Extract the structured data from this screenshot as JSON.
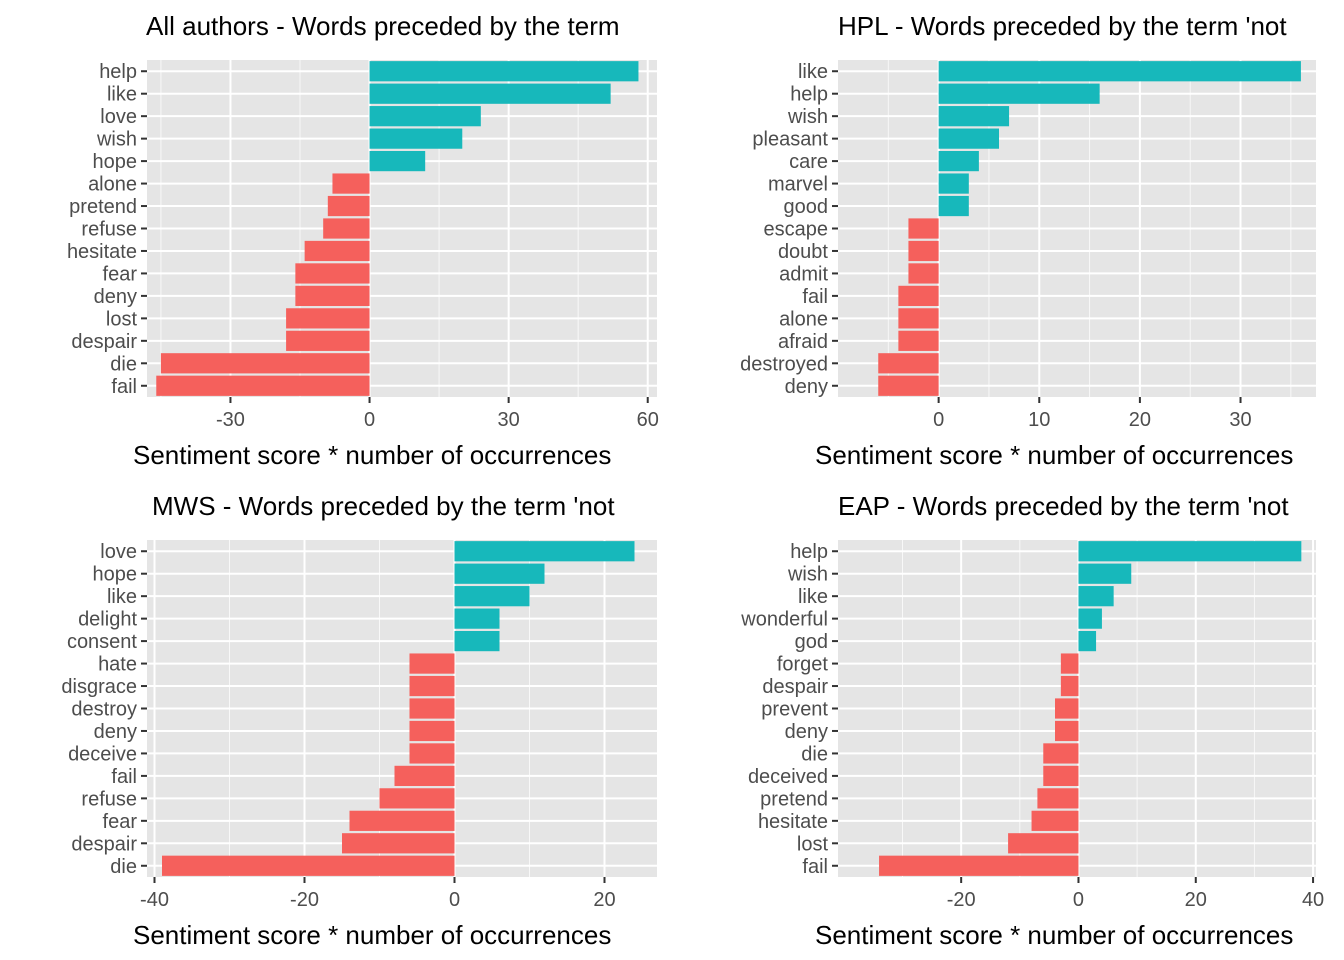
{
  "colors": {
    "positive": "#17b8bb",
    "negative": "#f5605c",
    "panel": "#e5e5e5",
    "grid": "#ffffff"
  },
  "chart_data": [
    {
      "type": "bar",
      "orientation": "horizontal",
      "title": "All authors - Words preceded by the term",
      "xlabel": "Sentiment score * number of occurrences",
      "xlim": [
        -48,
        62
      ],
      "xticks": [
        -30,
        0,
        30,
        60
      ],
      "categories": [
        "help",
        "like",
        "love",
        "wish",
        "hope",
        "alone",
        "pretend",
        "refuse",
        "hesitate",
        "fear",
        "deny",
        "lost",
        "despair",
        "die",
        "fail"
      ],
      "values": [
        58,
        52,
        24,
        20,
        12,
        -8,
        -9,
        -10,
        -14,
        -16,
        -16,
        -18,
        -18,
        -45,
        -46
      ],
      "grid": true,
      "legend": "none"
    },
    {
      "type": "bar",
      "orientation": "horizontal",
      "title": "HPL - Words preceded by the term 'not",
      "xlabel": "Sentiment score * number of occurrences",
      "xlim": [
        -10,
        37.5
      ],
      "xticks": [
        0,
        10,
        20,
        30
      ],
      "categories": [
        "like",
        "help",
        "wish",
        "pleasant",
        "care",
        "marvel",
        "good",
        "escape",
        "doubt",
        "admit",
        "fail",
        "alone",
        "afraid",
        "destroyed",
        "deny"
      ],
      "values": [
        36,
        16,
        7,
        6,
        4,
        3,
        3,
        -3,
        -3,
        -3,
        -4,
        -4,
        -4,
        -6,
        -6
      ],
      "grid": true,
      "legend": "none"
    },
    {
      "type": "bar",
      "orientation": "horizontal",
      "title": "MWS - Words preceded by the term 'not",
      "xlabel": "Sentiment score * number of occurrences",
      "xlim": [
        -41,
        27
      ],
      "xticks": [
        -40,
        -20,
        0,
        20
      ],
      "categories": [
        "love",
        "hope",
        "like",
        "delight",
        "consent",
        "hate",
        "disgrace",
        "destroy",
        "deny",
        "deceive",
        "fail",
        "refuse",
        "fear",
        "despair",
        "die"
      ],
      "values": [
        24,
        12,
        10,
        6,
        6,
        -6,
        -6,
        -6,
        -6,
        -6,
        -8,
        -10,
        -14,
        -15,
        -39
      ],
      "grid": true,
      "legend": "none"
    },
    {
      "type": "bar",
      "orientation": "horizontal",
      "title": "EAP - Words preceded by the term 'not",
      "xlabel": "Sentiment score * number of occurrences",
      "xlim": [
        -41,
        40.5
      ],
      "xticks": [
        -20,
        0,
        20,
        40
      ],
      "categories": [
        "help",
        "wish",
        "like",
        "wonderful",
        "god",
        "forget",
        "despair",
        "prevent",
        "deny",
        "die",
        "deceived",
        "pretend",
        "hesitate",
        "lost",
        "fail"
      ],
      "values": [
        38,
        9,
        6,
        4,
        3,
        -3,
        -3,
        -4,
        -4,
        -6,
        -6,
        -7,
        -8,
        -12,
        -34
      ],
      "grid": true,
      "legend": "none"
    }
  ]
}
